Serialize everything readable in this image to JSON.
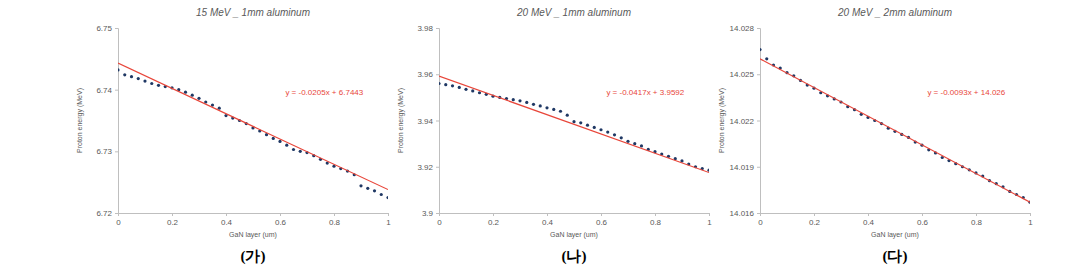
{
  "chart_data": [
    {
      "type": "scatter",
      "title": "15 MeV _ 1mm aluminum",
      "caption": "(가)",
      "x_label": "GaN layer (um)",
      "y_label": "Proton energy (MeV)",
      "annotation": "y = -0.0205x + 6.7443",
      "grid": false,
      "x": [
        0,
        0.025,
        0.05,
        0.075,
        0.1,
        0.125,
        0.15,
        0.175,
        0.2,
        0.225,
        0.25,
        0.275,
        0.3,
        0.325,
        0.35,
        0.375,
        0.4,
        0.425,
        0.45,
        0.475,
        0.5,
        0.525,
        0.55,
        0.575,
        0.6,
        0.625,
        0.65,
        0.675,
        0.7,
        0.725,
        0.75,
        0.775,
        0.8,
        0.825,
        0.85,
        0.875,
        0.9,
        0.925,
        0.95,
        0.975,
        1
      ],
      "xlim": [
        0,
        1
      ],
      "xticks": [
        0,
        0.2,
        0.4,
        0.6,
        0.8,
        1
      ],
      "ylim": [
        6.72,
        6.75
      ],
      "yticks": [
        6.72,
        6.73,
        6.74,
        6.75
      ],
      "series": [
        {
          "type": "scatter",
          "color": "#1f3864",
          "marker": "circle",
          "values": [
            6.7432,
            6.7424,
            6.7421,
            6.7418,
            6.7414,
            6.741,
            6.7407,
            6.7405,
            6.7403,
            6.74,
            6.7396,
            6.7391,
            6.7386,
            6.738,
            6.7375,
            6.737,
            6.7358,
            6.7354,
            6.735,
            6.7345,
            6.7338,
            6.7333,
            6.7327,
            6.7321,
            6.7316,
            6.731,
            6.7303,
            6.73,
            6.7298,
            6.7293,
            6.7287,
            6.7281,
            6.7276,
            6.7272,
            6.7268,
            6.7262,
            6.7244,
            6.724,
            6.7236,
            6.723,
            6.7225
          ]
        },
        {
          "type": "line",
          "color": "#e8463a",
          "line_style": "solid",
          "x": [
            0,
            1
          ],
          "values": [
            6.7443,
            6.7238
          ]
        }
      ]
    },
    {
      "type": "scatter",
      "title": "20 MeV _ 1mm aluminum",
      "caption": "(나)",
      "x_label": "GaN layer (um)",
      "y_label": "Proton energy (MeV)",
      "annotation": "y = -0.0417x + 3.9592",
      "grid": false,
      "x": [
        0,
        0.025,
        0.05,
        0.075,
        0.1,
        0.125,
        0.15,
        0.175,
        0.2,
        0.225,
        0.25,
        0.275,
        0.3,
        0.325,
        0.35,
        0.375,
        0.4,
        0.425,
        0.45,
        0.475,
        0.5,
        0.525,
        0.55,
        0.575,
        0.6,
        0.625,
        0.65,
        0.675,
        0.7,
        0.725,
        0.75,
        0.775,
        0.8,
        0.825,
        0.85,
        0.875,
        0.9,
        0.925,
        0.95,
        0.975,
        1
      ],
      "xlim": [
        0,
        1
      ],
      "xticks": [
        0,
        0.2,
        0.4,
        0.6,
        0.8,
        1
      ],
      "ylim": [
        3.9,
        3.98
      ],
      "yticks": [
        3.9,
        3.92,
        3.94,
        3.96,
        3.98
      ],
      "series": [
        {
          "type": "scatter",
          "color": "#1f3864",
          "marker": "circle",
          "values": [
            3.956,
            3.9555,
            3.955,
            3.9543,
            3.9535,
            3.9528,
            3.952,
            3.9513,
            3.9505,
            3.95,
            3.9495,
            3.949,
            3.9485,
            3.9478,
            3.947,
            3.9463,
            3.9455,
            3.9448,
            3.944,
            3.9423,
            3.9395,
            3.939,
            3.938,
            3.937,
            3.936,
            3.935,
            3.9338,
            3.9325,
            3.931,
            3.93,
            3.929,
            3.9275,
            3.9265,
            3.9255,
            3.9245,
            3.9235,
            3.9225,
            3.9212,
            3.92,
            3.9192,
            3.9185
          ]
        },
        {
          "type": "line",
          "color": "#e8463a",
          "line_style": "solid",
          "x": [
            0,
            1
          ],
          "values": [
            3.9592,
            3.9175
          ]
        }
      ]
    },
    {
      "type": "scatter",
      "title": "20 MeV _ 2mm aluminum",
      "caption": "(다)",
      "x_label": "GaN layer (um)",
      "y_label": "Proton energy (MeV)",
      "annotation": "y = -0.0093x + 14.026",
      "grid": false,
      "x": [
        0,
        0.025,
        0.05,
        0.075,
        0.1,
        0.125,
        0.15,
        0.175,
        0.2,
        0.225,
        0.25,
        0.275,
        0.3,
        0.325,
        0.35,
        0.375,
        0.4,
        0.425,
        0.45,
        0.475,
        0.5,
        0.525,
        0.55,
        0.575,
        0.6,
        0.625,
        0.65,
        0.675,
        0.7,
        0.725,
        0.75,
        0.775,
        0.8,
        0.825,
        0.85,
        0.875,
        0.9,
        0.925,
        0.95,
        0.975,
        1
      ],
      "xlim": [
        0,
        1
      ],
      "xticks": [
        0,
        0.2,
        0.4,
        0.6,
        0.8,
        1
      ],
      "ylim": [
        14.016,
        14.028
      ],
      "yticks": [
        14.016,
        14.019,
        14.022,
        14.025,
        14.028
      ],
      "series": [
        {
          "type": "scatter",
          "color": "#1f3864",
          "marker": "circle",
          "values": [
            14.0266,
            14.026,
            14.0256,
            14.0254,
            14.0251,
            14.0249,
            14.0246,
            14.0243,
            14.0241,
            14.0238,
            14.0236,
            14.0234,
            14.0232,
            14.0229,
            14.0227,
            14.0224,
            14.0222,
            14.022,
            14.0218,
            14.0215,
            14.0213,
            14.0211,
            14.0209,
            14.0206,
            14.0204,
            14.0201,
            14.0199,
            14.0196,
            14.0194,
            14.0192,
            14.019,
            14.0188,
            14.0186,
            14.0184,
            14.0181,
            14.0179,
            14.0177,
            14.0174,
            14.0172,
            14.017,
            14.0167
          ]
        },
        {
          "type": "line",
          "color": "#e8463a",
          "line_style": "solid",
          "x": [
            0,
            1
          ],
          "values": [
            14.026,
            14.0167
          ]
        }
      ]
    }
  ]
}
